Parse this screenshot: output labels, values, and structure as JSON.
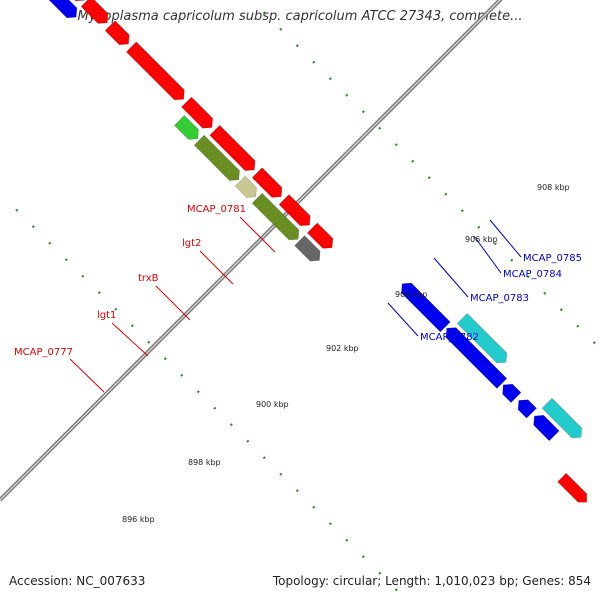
{
  "title": "Mycoplasma capricolum subsp. capricolum ATCC 27343, complete...",
  "footer": {
    "accession": "Accession: NC_007633",
    "summary": "Topology: circular; Length: 1,010,023 bp; Genes: 854"
  },
  "colors": {
    "backbone": "#999999",
    "ruler_dots": "#2e8b2e",
    "label_red": "#dd0000",
    "label_blue": "#0000cc",
    "red_gene": "#ff0000",
    "blue_gene": "#0000ee",
    "cyan_gene": "#22cccc",
    "olive_gene": "#6b8e23",
    "khaki_gene": "#c8c890",
    "green_gene": "#33cc33",
    "grey_gene": "#666666",
    "magenta_gene": "#ff33aa"
  },
  "ruler_labels": [
    "896 kbp",
    "898 kbp",
    "900 kbp",
    "902 kbp",
    "904 kbp",
    "906 kbp",
    "908 kbp"
  ],
  "gene_labels": [
    {
      "text": "MCAP_0777",
      "color": "red"
    },
    {
      "text": "lgt1",
      "color": "red"
    },
    {
      "text": "trxB",
      "color": "red"
    },
    {
      "text": "lgt2",
      "color": "red"
    },
    {
      "text": "MCAP_0781",
      "color": "red"
    },
    {
      "text": "MCAP_0782",
      "color": "blue"
    },
    {
      "text": "MCAP_0783",
      "color": "blue"
    },
    {
      "text": "MCAP_0784",
      "color": "blue"
    },
    {
      "text": "MCAP_0785",
      "color": "blue"
    }
  ]
}
